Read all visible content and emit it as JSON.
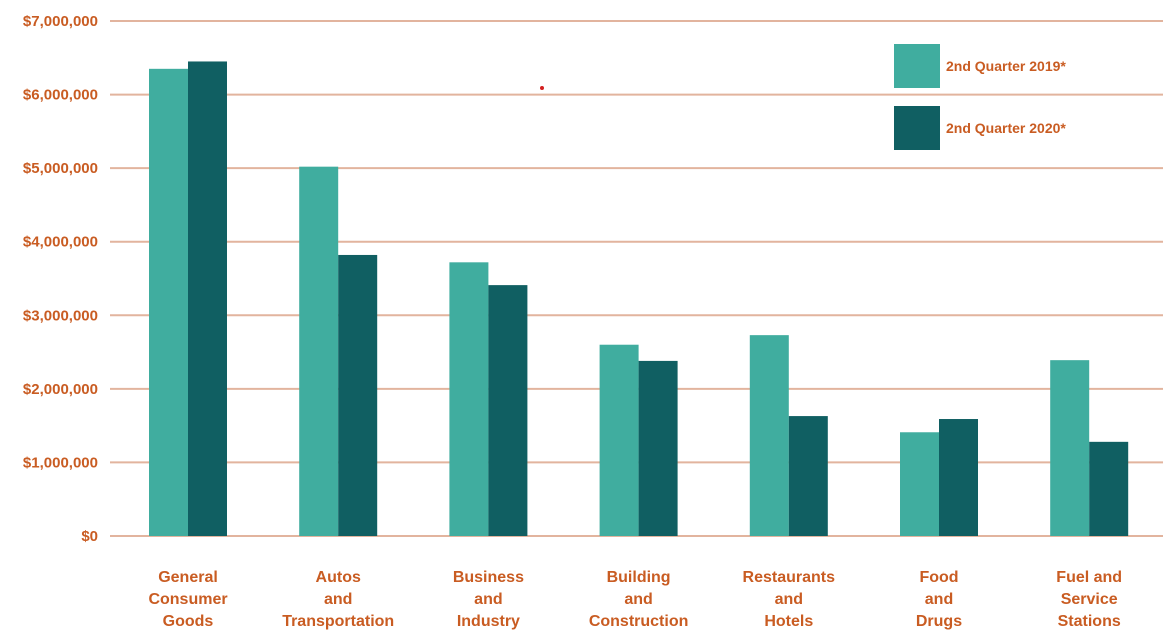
{
  "colors": {
    "series_2019": "#40ad9f",
    "series_2020": "#105f62",
    "text": "#c95c22",
    "grid": "#e2b49e"
  },
  "chart_data": {
    "type": "bar",
    "title": "",
    "xlabel": "",
    "ylabel": "",
    "ylim": [
      0,
      7000000
    ],
    "yticks": [
      "$0",
      "$1,000,000",
      "$2,000,000",
      "$3,000,000",
      "$4,000,000",
      "$5,000,000",
      "$6,000,000",
      "$7,000,000"
    ],
    "categories": [
      [
        "General",
        "Consumer",
        "Goods"
      ],
      [
        "Autos",
        "and",
        "Transportation"
      ],
      [
        "Business",
        "and",
        "Industry"
      ],
      [
        "Building",
        "and",
        "Construction"
      ],
      [
        "Restaurants",
        "and",
        "Hotels"
      ],
      [
        "Food",
        "and",
        "Drugs"
      ],
      [
        "Fuel and",
        "Service",
        "Stations"
      ]
    ],
    "series": [
      {
        "name": "2nd Quarter 2019*",
        "values": [
          6350000,
          5020000,
          3720000,
          2600000,
          2730000,
          1410000,
          2390000
        ]
      },
      {
        "name": "2nd Quarter 2020*",
        "values": [
          6450000,
          3820000,
          3410000,
          2380000,
          1630000,
          1590000,
          1280000
        ]
      }
    ],
    "grid": true,
    "legend": "top-right"
  }
}
